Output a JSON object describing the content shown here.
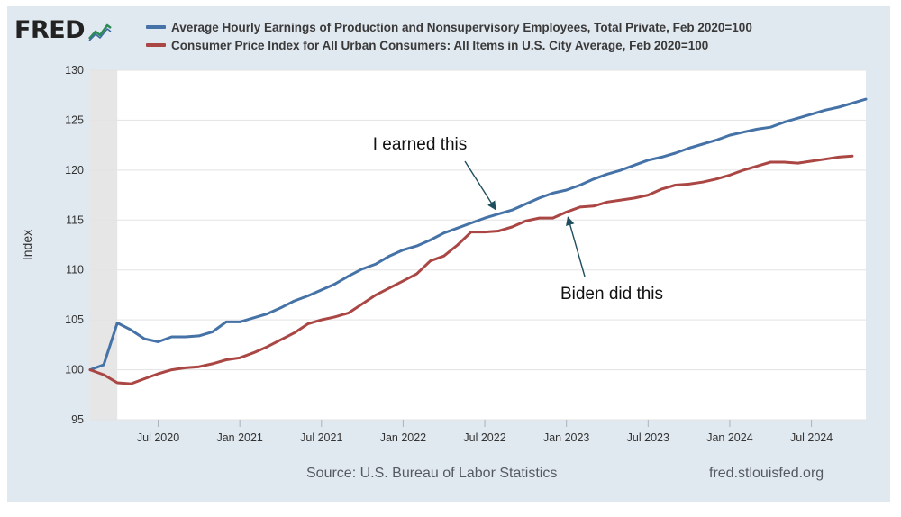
{
  "header": {
    "logo_text": "FRED",
    "logo_icon": "chart-line-icon"
  },
  "footer": {
    "source": "Source: U.S. Bureau of Labor Statistics",
    "site": "fred.stlouisfed.org"
  },
  "colors": {
    "background": "#e1e9f0",
    "plot_background": "#ffffff",
    "earnings": "#4572a7",
    "cpi": "#aa4643",
    "recession_shade": "#e6e6e6"
  },
  "chart_data": {
    "type": "line",
    "title": "",
    "xlabel": "",
    "ylabel": "Index",
    "ylim": [
      95,
      130
    ],
    "yticks": [
      95,
      100,
      105,
      110,
      115,
      120,
      125,
      130
    ],
    "xlim": [
      "2020-02",
      "2024-11"
    ],
    "xticks": [
      {
        "date": "2020-07",
        "label": "Jul 2020"
      },
      {
        "date": "2021-01",
        "label": "Jan 2021"
      },
      {
        "date": "2021-07",
        "label": "Jul 2021"
      },
      {
        "date": "2022-01",
        "label": "Jan 2022"
      },
      {
        "date": "2022-07",
        "label": "Jul 2022"
      },
      {
        "date": "2023-01",
        "label": "Jan 2023"
      },
      {
        "date": "2023-07",
        "label": "Jul 2023"
      },
      {
        "date": "2024-01",
        "label": "Jan 2024"
      },
      {
        "date": "2024-07",
        "label": "Jul 2024"
      }
    ],
    "grid": "horizontal",
    "legend_position": "top",
    "shaded_region": {
      "start": "2020-02",
      "end": "2020-04"
    },
    "series": [
      {
        "name": "Average Hourly Earnings of Production and Nonsupervisory Employees, Total Private, Feb 2020=100",
        "color": "#4572a7",
        "x": [
          "2020-02",
          "2020-03",
          "2020-04",
          "2020-05",
          "2020-06",
          "2020-07",
          "2020-08",
          "2020-09",
          "2020-10",
          "2020-11",
          "2020-12",
          "2021-01",
          "2021-02",
          "2021-03",
          "2021-04",
          "2021-05",
          "2021-06",
          "2021-07",
          "2021-08",
          "2021-09",
          "2021-10",
          "2021-11",
          "2021-12",
          "2022-01",
          "2022-02",
          "2022-03",
          "2022-04",
          "2022-05",
          "2022-06",
          "2022-07",
          "2022-08",
          "2022-09",
          "2022-10",
          "2022-11",
          "2022-12",
          "2023-01",
          "2023-02",
          "2023-03",
          "2023-04",
          "2023-05",
          "2023-06",
          "2023-07",
          "2023-08",
          "2023-09",
          "2023-10",
          "2023-11",
          "2023-12",
          "2024-01",
          "2024-02",
          "2024-03",
          "2024-04",
          "2024-05",
          "2024-06",
          "2024-07",
          "2024-08",
          "2024-09",
          "2024-10",
          "2024-11"
        ],
        "y": [
          100.0,
          100.5,
          104.7,
          104.0,
          103.1,
          102.8,
          103.3,
          103.3,
          103.4,
          103.8,
          104.8,
          104.8,
          105.2,
          105.6,
          106.2,
          106.9,
          107.4,
          108.0,
          108.6,
          109.4,
          110.1,
          110.6,
          111.4,
          112.0,
          112.4,
          113.0,
          113.7,
          114.2,
          114.7,
          115.2,
          115.6,
          116.0,
          116.6,
          117.2,
          117.7,
          118.0,
          118.5,
          119.1,
          119.6,
          120.0,
          120.5,
          121.0,
          121.3,
          121.7,
          122.2,
          122.6,
          123.0,
          123.5,
          123.8,
          124.1,
          124.3,
          124.8,
          125.2,
          125.6,
          126.0,
          126.3,
          126.7,
          127.1
        ]
      },
      {
        "name": "Consumer Price Index for All Urban Consumers: All Items in U.S. City Average, Feb 2020=100",
        "color": "#aa4643",
        "x": [
          "2020-02",
          "2020-03",
          "2020-04",
          "2020-05",
          "2020-06",
          "2020-07",
          "2020-08",
          "2020-09",
          "2020-10",
          "2020-11",
          "2020-12",
          "2021-01",
          "2021-02",
          "2021-03",
          "2021-04",
          "2021-05",
          "2021-06",
          "2021-07",
          "2021-08",
          "2021-09",
          "2021-10",
          "2021-11",
          "2021-12",
          "2022-01",
          "2022-02",
          "2022-03",
          "2022-04",
          "2022-05",
          "2022-06",
          "2022-07",
          "2022-08",
          "2022-09",
          "2022-10",
          "2022-11",
          "2022-12",
          "2023-01",
          "2023-02",
          "2023-03",
          "2023-04",
          "2023-05",
          "2023-06",
          "2023-07",
          "2023-08",
          "2023-09",
          "2023-10",
          "2023-11",
          "2023-12",
          "2024-01",
          "2024-02",
          "2024-03",
          "2024-04",
          "2024-05",
          "2024-06",
          "2024-07",
          "2024-08",
          "2024-09",
          "2024-10"
        ],
        "y": [
          100.0,
          99.5,
          98.7,
          98.6,
          99.1,
          99.6,
          100.0,
          100.2,
          100.3,
          100.6,
          101.0,
          101.2,
          101.7,
          102.3,
          103.0,
          103.7,
          104.6,
          105.0,
          105.3,
          105.7,
          106.6,
          107.5,
          108.2,
          108.9,
          109.6,
          110.9,
          111.4,
          112.5,
          113.8,
          113.8,
          113.9,
          114.3,
          114.9,
          115.2,
          115.2,
          115.8,
          116.3,
          116.4,
          116.8,
          117.0,
          117.2,
          117.5,
          118.1,
          118.5,
          118.6,
          118.8,
          119.1,
          119.5,
          120.0,
          120.4,
          120.8,
          120.8,
          120.7,
          120.9,
          121.1,
          121.3,
          121.4
        ]
      }
    ],
    "annotations": [
      {
        "text": "I earned this",
        "arrow_to": {
          "x": "2022-08",
          "y": 115.6
        }
      },
      {
        "text": "Biden did this",
        "arrow_to": {
          "x": "2023-01",
          "y": 115.8
        }
      }
    ]
  }
}
